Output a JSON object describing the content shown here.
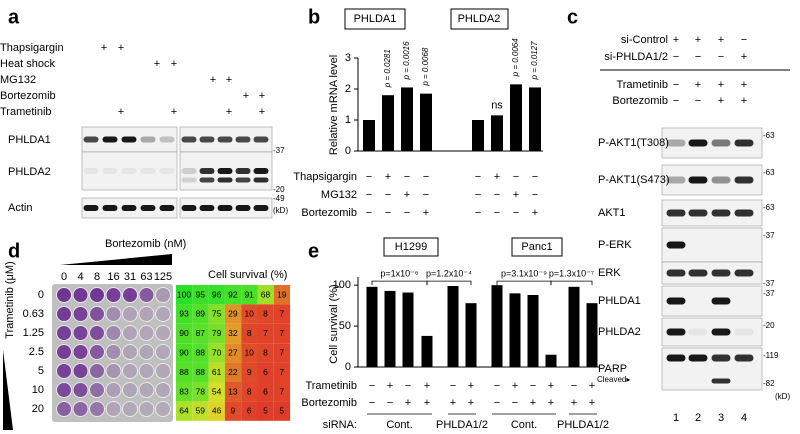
{
  "a": {
    "label": "a",
    "rows": [
      "Thapsigargin",
      "Heat shock",
      "MG132",
      "Bortezomib",
      "Trametinib"
    ],
    "signs": [
      [
        "+",
        "+"
      ],
      [
        "+",
        "+"
      ],
      [
        "+",
        "+"
      ],
      [
        "+",
        "+"
      ],
      [
        "+",
        "+",
        "+",
        "+"
      ]
    ],
    "blots": [
      "PHLDA1",
      "PHLDA2",
      "Actin"
    ],
    "markers": [
      "-37",
      "-20",
      "-49",
      "(kD)"
    ]
  },
  "b": {
    "label": "b",
    "groups": [
      "PHLDA1",
      "PHLDA2"
    ],
    "y_label": "Relative mRNA level",
    "ylim": [
      0,
      3
    ],
    "yticks": [
      0,
      1,
      2,
      3
    ],
    "values": [
      1.0,
      1.8,
      2.05,
      1.85,
      1.0,
      1.15,
      2.15,
      2.05
    ],
    "annotations": [
      "p = 0.0281",
      "p = 0.0016",
      "p = 0.0068",
      "ns",
      "p = 0.0064",
      "p = 0.0127"
    ],
    "rows": [
      "Thapsigargin",
      "MG132",
      "Bortezomib"
    ],
    "signs": [
      [
        "−",
        "+",
        "−",
        "−",
        "−",
        "+",
        "−",
        "−"
      ],
      [
        "−",
        "−",
        "+",
        "−",
        "−",
        "−",
        "+",
        "−"
      ],
      [
        "−",
        "−",
        "−",
        "+",
        "−",
        "−",
        "−",
        "+"
      ]
    ]
  },
  "c": {
    "label": "c",
    "rows": [
      "si-Control",
      "si-PHLDA1/2",
      "Trametinib",
      "Bortezomib"
    ],
    "signs": [
      [
        "+",
        "+",
        "+",
        "−"
      ],
      [
        "−",
        "−",
        "−",
        "+"
      ],
      [
        "−",
        "+",
        "+",
        "+"
      ],
      [
        "−",
        "−",
        "+",
        "+"
      ]
    ],
    "blots": [
      {
        "name": "P-AKT1(T308)",
        "marker": "-63"
      },
      {
        "name": "P-AKT1(S473)",
        "marker": "-63"
      },
      {
        "name": "AKT1",
        "marker": "-63"
      },
      {
        "name": "P-ERK",
        "marker": "-37"
      },
      {
        "name": "ERK",
        "marker": "-37"
      },
      {
        "name": "PHLDA1",
        "marker": "-37"
      },
      {
        "name": "PHLDA2",
        "marker": "-20"
      },
      {
        "name": "PARP",
        "marker": "-119"
      }
    ],
    "parp_low_marker": "-82",
    "cleaved": "Cleaved▸",
    "lanes": [
      1,
      2,
      3,
      4
    ],
    "unit": "(kD)"
  },
  "d": {
    "label": "d",
    "x_label": "Bortezomib (nM)",
    "y_label": "Trametinib (μM)",
    "columns": [
      0,
      4,
      8,
      16,
      31,
      63,
      125
    ],
    "rows": [
      0,
      0.63,
      1.25,
      2.5,
      5,
      10,
      20
    ],
    "heatmap_title": "Cell survival (%)",
    "values": [
      [
        100,
        95,
        96,
        92,
        91,
        68,
        19
      ],
      [
        93,
        89,
        75,
        29,
        10,
        8,
        7
      ],
      [
        90,
        87,
        79,
        32,
        8,
        7,
        7
      ],
      [
        90,
        88,
        70,
        27,
        10,
        8,
        7
      ],
      [
        88,
        88,
        61,
        22,
        9,
        6,
        7
      ],
      [
        83,
        78,
        54,
        13,
        8,
        6,
        7
      ],
      [
        64,
        59,
        46,
        9,
        6,
        5,
        5
      ]
    ]
  },
  "e": {
    "label": "e",
    "groups": [
      "H1299",
      "Panc1"
    ],
    "y_label": "Cell survival (%)",
    "ylim": [
      0,
      110
    ],
    "yticks": [
      0,
      50,
      100
    ],
    "values": [
      98,
      93,
      91,
      38,
      99,
      78,
      100,
      90,
      88,
      15,
      98,
      78
    ],
    "p_values": [
      "p=1x10⁻⁶",
      "p=1.2x10⁻⁴",
      "p=3.1x10⁻⁹",
      "p=1.3x10⁻⁷"
    ],
    "rows": [
      "Trametinib",
      "Bortezomib"
    ],
    "signs": [
      [
        "−",
        "+",
        "−",
        "+",
        "−",
        "+",
        "−",
        "+",
        "−",
        "+",
        "−",
        "+"
      ],
      [
        "−",
        "−",
        "+",
        "+",
        "+",
        "+",
        "−",
        "−",
        "+",
        "+",
        "+",
        "+"
      ]
    ],
    "sirna_label": "siRNA:",
    "sirna": [
      "Cont.",
      "PHLDA1/2",
      "Cont.",
      "PHLDA1/2"
    ]
  }
}
